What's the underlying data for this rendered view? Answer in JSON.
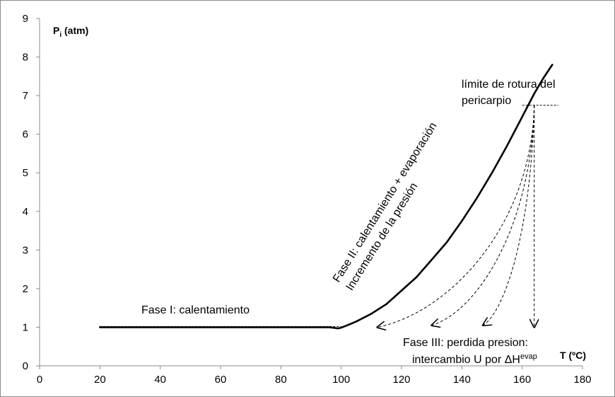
{
  "chart_data": {
    "type": "line",
    "xlim": [
      0,
      180
    ],
    "ylim": [
      0,
      9
    ],
    "xticks": [
      "0",
      "20",
      "40",
      "60",
      "80",
      "100",
      "120",
      "140",
      "160",
      "180"
    ],
    "yticks": [
      "0",
      "1",
      "2",
      "3",
      "4",
      "5",
      "6",
      "7",
      "8",
      "9"
    ],
    "xlabel": "T (ºC)",
    "ylabel": {
      "main": "P",
      "sub": "i",
      "rest": " (atm)"
    },
    "grid": false,
    "series": [
      {
        "x": [
          20,
          30,
          40,
          50,
          60,
          70,
          80,
          90,
          96,
          98,
          99,
          100,
          102,
          105,
          110,
          115,
          120,
          125,
          130,
          135,
          140,
          145,
          150,
          155,
          160,
          164,
          167,
          170
        ],
        "y": [
          1.0,
          1.0,
          1.0,
          1.0,
          1.0,
          1.0,
          1.0,
          1.0,
          1.0,
          0.98,
          0.97,
          0.99,
          1.05,
          1.15,
          1.35,
          1.6,
          1.95,
          2.3,
          2.75,
          3.2,
          3.75,
          4.35,
          5.0,
          5.7,
          6.45,
          7.05,
          7.45,
          7.8
        ]
      }
    ],
    "dashed_baseline": {
      "x": [
        20,
        100
      ],
      "y": [
        1.02,
        1.02
      ]
    },
    "dashed_limit": {
      "x": [
        160,
        172
      ],
      "y": 6.75
    },
    "dashed_arrows": [
      {
        "from": [
          164,
          6.75
        ],
        "to": [
          164,
          1.0
        ]
      },
      {
        "from": [
          164,
          6.75
        ],
        "to": [
          147,
          1.05
        ]
      },
      {
        "from": [
          164,
          6.75
        ],
        "to": [
          130,
          1.05
        ]
      },
      {
        "from": [
          164,
          6.75
        ],
        "to": [
          112,
          1.0
        ]
      }
    ],
    "annotations": [
      {
        "id": "fase1",
        "text": "Fase I: calentamiento"
      },
      {
        "id": "fase2a",
        "text": "Fase II: calentamiento + evaporación"
      },
      {
        "id": "fase2b",
        "text": "Incremento de la presión"
      },
      {
        "id": "limite1",
        "text": "límite de rotura del"
      },
      {
        "id": "limite2",
        "text": "pericarpio"
      },
      {
        "id": "fase3a",
        "text": "Fase III: perdida presion:"
      },
      {
        "id": "fase3b",
        "text": "intercambio U por ΔH"
      },
      {
        "id": "fase3b_sup",
        "text": "evap"
      }
    ]
  }
}
